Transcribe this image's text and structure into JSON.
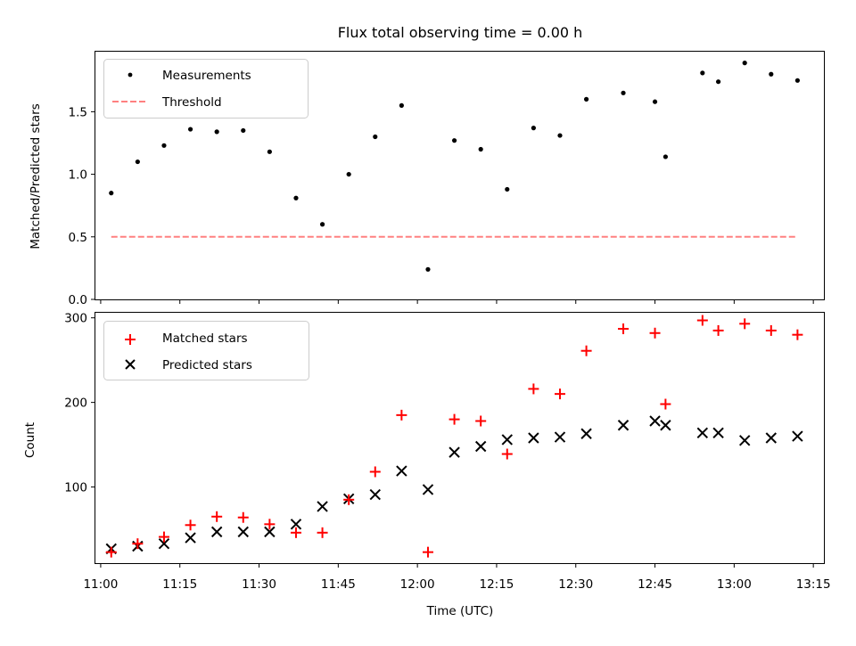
{
  "chart_data": [
    {
      "type": "scatter",
      "title": "Flux total observing time = 0.00 h",
      "xlabel": "",
      "ylabel": "Matched/Predicted stars",
      "xlim": [
        "10:59",
        "13:17"
      ],
      "ylim": [
        0,
        1.98
      ],
      "yticks": [
        0.0,
        0.5,
        1.0,
        1.5
      ],
      "ytick_labels": [
        "0.0",
        "0.5",
        "1.0",
        "1.5"
      ],
      "legend_position": "upper left",
      "colors": {
        "measurements": "#000000",
        "threshold": "#ff8080"
      },
      "series": [
        {
          "name": "Measurements",
          "marker": "dot",
          "x": [
            "11:02",
            "11:07",
            "11:12",
            "11:17",
            "11:22",
            "11:27",
            "11:32",
            "11:37",
            "11:42",
            "11:47",
            "11:52",
            "11:57",
            "12:02",
            "12:07",
            "12:12",
            "12:17",
            "12:22",
            "12:27",
            "12:32",
            "12:39",
            "12:45",
            "12:47",
            "12:54",
            "12:57",
            "13:02",
            "13:07",
            "13:12"
          ],
          "y": [
            0.85,
            1.1,
            1.23,
            1.36,
            1.34,
            1.35,
            1.18,
            0.81,
            0.6,
            1.0,
            1.3,
            1.55,
            0.24,
            1.27,
            1.2,
            0.88,
            1.37,
            1.31,
            1.6,
            1.65,
            1.58,
            1.14,
            1.81,
            1.74,
            1.89,
            1.8,
            1.75
          ]
        },
        {
          "name": "Threshold",
          "marker": "dashed-line",
          "x": [
            "11:02",
            "13:12"
          ],
          "y": [
            0.5,
            0.5
          ]
        }
      ]
    },
    {
      "type": "scatter",
      "title": "",
      "xlabel": "Time (UTC)",
      "ylabel": "Count",
      "xlim": [
        "10:59",
        "13:17"
      ],
      "ylim": [
        10,
        306
      ],
      "yticks": [
        100,
        200,
        300
      ],
      "ytick_labels": [
        "100",
        "200",
        "300"
      ],
      "xticks": [
        "11:00",
        "11:15",
        "11:30",
        "11:45",
        "12:00",
        "12:15",
        "12:30",
        "12:45",
        "13:00",
        "13:15"
      ],
      "legend_position": "upper left",
      "colors": {
        "matched": "#ff0000",
        "predicted": "#000000"
      },
      "series": [
        {
          "name": "Matched stars",
          "marker": "plus",
          "x": [
            "11:02",
            "11:07",
            "11:12",
            "11:17",
            "11:22",
            "11:27",
            "11:32",
            "11:37",
            "11:42",
            "11:47",
            "11:52",
            "11:57",
            "12:02",
            "12:07",
            "12:12",
            "12:17",
            "12:22",
            "12:27",
            "12:32",
            "12:39",
            "12:45",
            "12:47",
            "12:54",
            "12:57",
            "13:02",
            "13:07",
            "13:12"
          ],
          "y": [
            23,
            33,
            41,
            55,
            65,
            64,
            56,
            46,
            46,
            85,
            118,
            185,
            23,
            180,
            178,
            139,
            216,
            210,
            261,
            287,
            282,
            198,
            297,
            285,
            293,
            285,
            280
          ]
        },
        {
          "name": "Predicted stars",
          "marker": "x",
          "x": [
            "11:02",
            "11:07",
            "11:12",
            "11:17",
            "11:22",
            "11:27",
            "11:32",
            "11:37",
            "11:42",
            "11:47",
            "11:52",
            "11:57",
            "12:02",
            "12:07",
            "12:12",
            "12:17",
            "12:22",
            "12:27",
            "12:32",
            "12:39",
            "12:45",
            "12:47",
            "12:54",
            "12:57",
            "13:02",
            "13:07",
            "13:12"
          ],
          "y": [
            27,
            30,
            33,
            40,
            47,
            47,
            47,
            56,
            77,
            86,
            91,
            119,
            97,
            141,
            148,
            156,
            158,
            159,
            163,
            173,
            178,
            173,
            164,
            164,
            155,
            158,
            160
          ]
        }
      ]
    }
  ]
}
